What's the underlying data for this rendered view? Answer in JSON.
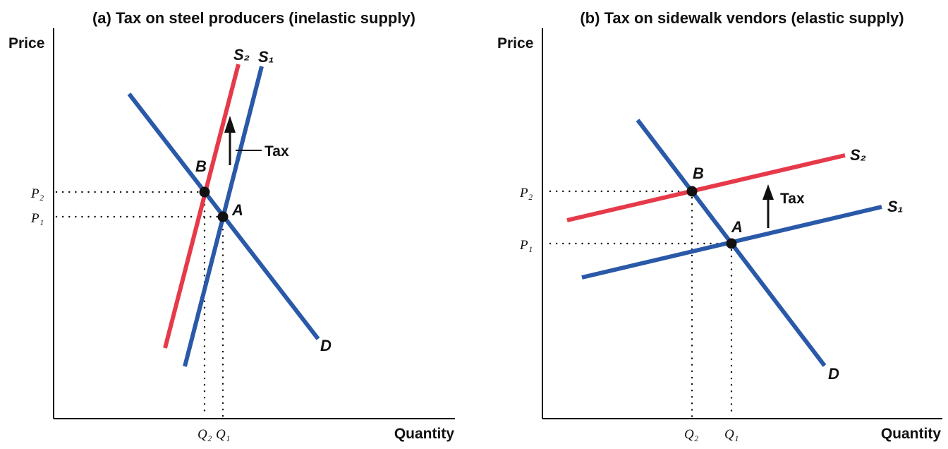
{
  "panels": [
    {
      "title": "(a) Tax on steel producers (inelastic supply)",
      "y_axis_label": "Price",
      "x_axis_label": "Quantity",
      "curves": {
        "s2": "S₂",
        "s1": "S₁",
        "d": "D"
      },
      "points": {
        "b": "B",
        "a": "A"
      },
      "price_labels": {
        "p2": "P₂",
        "p1": "P₁"
      },
      "quantity_labels": {
        "q2": "Q₂",
        "q1": "Q₁"
      },
      "tax_label": "Tax"
    },
    {
      "title": "(b) Tax on sidewalk vendors (elastic supply)",
      "y_axis_label": "Price",
      "x_axis_label": "Quantity",
      "curves": {
        "s2": "S₂",
        "s1": "S₁",
        "d": "D"
      },
      "points": {
        "b": "B",
        "a": "A"
      },
      "price_labels": {
        "p2": "P₂",
        "p1": "P₁"
      },
      "quantity_labels": {
        "q2": "Q₂",
        "q1": "Q₁"
      },
      "tax_label": "Tax"
    }
  ],
  "colors": {
    "supply_original": "#2a59a8",
    "supply_taxed": "#e63a4a",
    "demand": "#2a59a8",
    "axis": "#111111"
  }
}
